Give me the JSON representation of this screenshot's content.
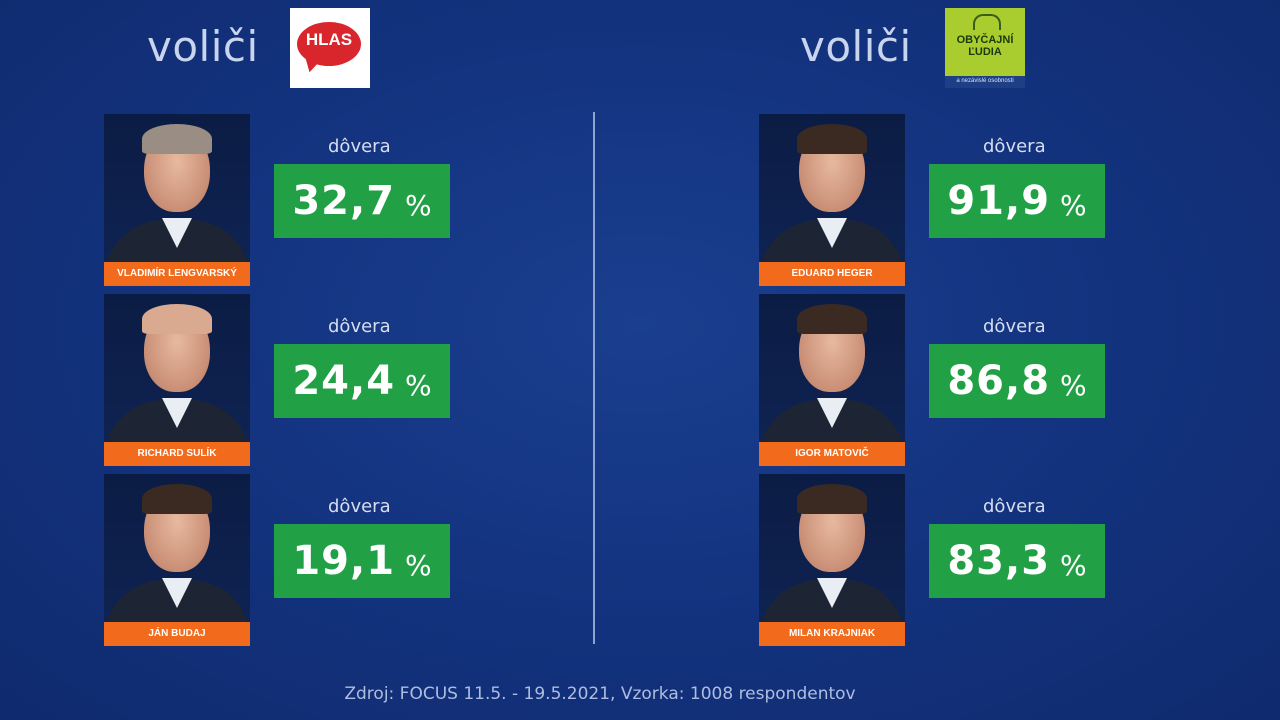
{
  "left_panel": {
    "voters_label": "voliči",
    "party_logo_text": "HLAS",
    "politicians": [
      {
        "name": "VLADIMÍR LENGVARSKÝ",
        "trust_label": "dôvera",
        "trust_value": "32,7",
        "unit": "%"
      },
      {
        "name": "RICHARD SULÍK",
        "trust_label": "dôvera",
        "trust_value": "24,4",
        "unit": "%"
      },
      {
        "name": "JÁN BUDAJ",
        "trust_label": "dôvera",
        "trust_value": "19,1",
        "unit": "%"
      }
    ]
  },
  "right_panel": {
    "voters_label": "voliči",
    "party_logo_text": "OBYČAJNÍ ĽUDIA",
    "party_logo_subtext": "a nezávislé osobnosti",
    "politicians": [
      {
        "name": "EDUARD HEGER",
        "trust_label": "dôvera",
        "trust_value": "91,9",
        "unit": "%"
      },
      {
        "name": "IGOR MATOVIČ",
        "trust_label": "dôvera",
        "trust_value": "86,8",
        "unit": "%"
      },
      {
        "name": "MILAN KRAJNIAK",
        "trust_label": "dôvera",
        "trust_value": "83,3",
        "unit": "%"
      }
    ]
  },
  "source": "Zdroj: FOCUS 11.5. - 19.5.2021, Vzorka: 1008 respondentov",
  "colors": {
    "background": "#143481",
    "trust_box": "#22a046",
    "name_tag": "#f26a1b",
    "hlas_red": "#d9262c",
    "olano_green": "#a9cc2e"
  }
}
